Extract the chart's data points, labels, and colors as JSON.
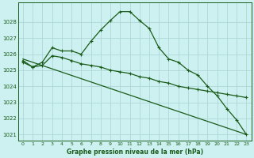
{
  "title": "Graphe pression niveau de la mer (hPa)",
  "bg_color": "#cdf0f0",
  "grid_color": "#b0d8d8",
  "line_color": "#1a5c1a",
  "xmin": -0.5,
  "xmax": 23.5,
  "ymin": 1020.6,
  "ymax": 1029.2,
  "yticks": [
    1021,
    1022,
    1023,
    1024,
    1025,
    1026,
    1027,
    1028
  ],
  "xticks": [
    0,
    1,
    2,
    3,
    4,
    5,
    6,
    7,
    8,
    9,
    10,
    11,
    12,
    13,
    14,
    15,
    16,
    17,
    18,
    19,
    20,
    21,
    22,
    23
  ],
  "series1_x": [
    0,
    1,
    2,
    3,
    4,
    5,
    6,
    7,
    8,
    9,
    10,
    11,
    12,
    13,
    14,
    15,
    16,
    17,
    18,
    19,
    20,
    21,
    22,
    23
  ],
  "series1_y": [
    1025.5,
    1025.2,
    1025.5,
    1026.4,
    1026.2,
    1026.2,
    1026.0,
    1026.8,
    1027.5,
    1028.1,
    1028.65,
    1028.65,
    1028.1,
    1027.6,
    1026.4,
    1025.7,
    1025.5,
    1025.0,
    1024.7,
    1024.0,
    1023.4,
    1022.6,
    1021.9,
    1021.0
  ],
  "series2_x": [
    0,
    1,
    2,
    3,
    4,
    5,
    6,
    7,
    8,
    9,
    10,
    11,
    12,
    13,
    14,
    15,
    16,
    17,
    18,
    19,
    20,
    21,
    22,
    23
  ],
  "series2_y": [
    1025.6,
    1025.2,
    1025.3,
    1025.9,
    1025.8,
    1025.6,
    1025.4,
    1025.3,
    1025.2,
    1025.0,
    1024.9,
    1024.8,
    1024.6,
    1024.5,
    1024.3,
    1024.2,
    1024.0,
    1023.9,
    1023.8,
    1023.7,
    1023.6,
    1023.5,
    1023.4,
    1023.3
  ],
  "series3_x": [
    0,
    23
  ],
  "series3_y": [
    1025.7,
    1021.0
  ]
}
